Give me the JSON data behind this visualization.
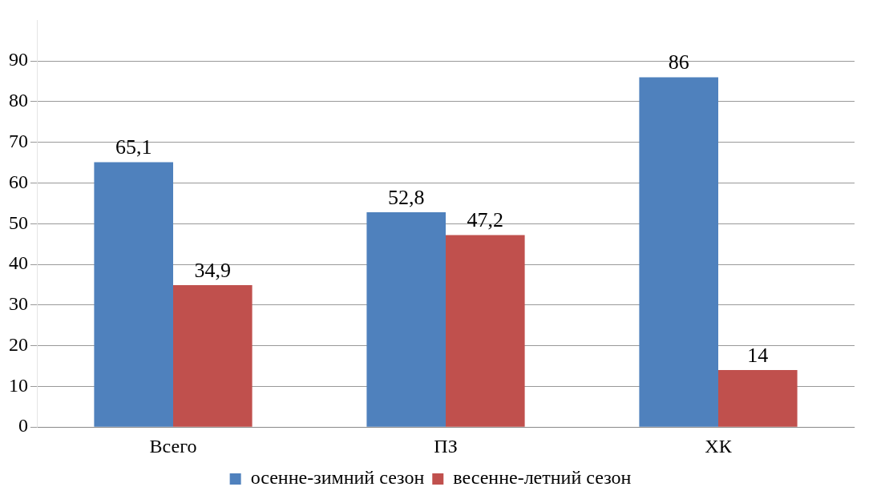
{
  "chart_data": {
    "type": "bar",
    "categories": [
      "Всего",
      "ПЗ",
      "ХК"
    ],
    "series": [
      {
        "name": "осенне-зимний сезон",
        "color": "#4f81bd",
        "values": [
          65.1,
          52.8,
          86
        ],
        "value_labels": [
          "65,1",
          "52,8",
          "86"
        ]
      },
      {
        "name": "весенне-летний сезон",
        "color": "#c0504d",
        "values": [
          34.9,
          47.2,
          14
        ],
        "value_labels": [
          "34,9",
          "47,2",
          "14"
        ]
      }
    ],
    "ylim": [
      0,
      100
    ],
    "yticks": [
      0,
      10,
      20,
      30,
      40,
      50,
      60,
      70,
      80,
      90
    ],
    "grid": "y",
    "legend": "bottom"
  }
}
